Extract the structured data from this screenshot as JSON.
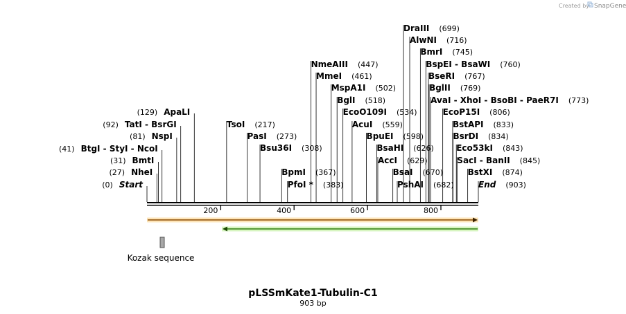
{
  "header": {
    "created_by": "Created by",
    "brand": "SnapGene"
  },
  "plasmid": {
    "name": "pLSSmKate1-Tubulin-C1",
    "length_label": "903 bp",
    "length": 903
  },
  "ruler_ticks": [
    "200",
    "400",
    "600",
    "800"
  ],
  "features": [
    {
      "name": "Kozak sequence",
      "type": "misc",
      "start": 41,
      "end": 51,
      "color": "#aaaaaa"
    },
    {
      "name": "top-arrow",
      "start": 1,
      "end": 903,
      "direction": "forward",
      "color": "#f5a623"
    },
    {
      "name": "bottom-arrow",
      "start": 208,
      "end": 903,
      "direction": "reverse",
      "color": "#7ed321"
    }
  ],
  "left_sites": [
    {
      "pos": 0,
      "pos_label": "(0)",
      "label": "Start",
      "italic": true
    },
    {
      "pos": 27,
      "pos_label": "(27)",
      "label": "NheI"
    },
    {
      "pos": 31,
      "pos_label": "(31)",
      "label": "BmtI"
    },
    {
      "pos": 41,
      "pos_label": "(41)",
      "label": "BtgI  -  StyI  -  NcoI"
    },
    {
      "pos": 81,
      "pos_label": "(81)",
      "label": "NspI"
    },
    {
      "pos": 92,
      "pos_label": "(92)",
      "label": "TatI  -  BsrGI"
    },
    {
      "pos": 129,
      "pos_label": "(129)",
      "label": "ApaLI"
    }
  ],
  "right_sites": [
    {
      "pos": 217,
      "pos_label": "(217)",
      "label": "TsoI"
    },
    {
      "pos": 273,
      "pos_label": "(273)",
      "label": "PasI"
    },
    {
      "pos": 308,
      "pos_label": "(308)",
      "label": "Bsu36I"
    },
    {
      "pos": 367,
      "pos_label": "(367)",
      "label": "BpmI"
    },
    {
      "pos": 383,
      "pos_label": "(383)",
      "label": "PfoI *"
    },
    {
      "pos": 447,
      "pos_label": "(447)",
      "label": "NmeAIII"
    },
    {
      "pos": 461,
      "pos_label": "(461)",
      "label": "MmeI"
    },
    {
      "pos": 502,
      "pos_label": "(502)",
      "label": "MspA1I"
    },
    {
      "pos": 518,
      "pos_label": "(518)",
      "label": "BglI"
    },
    {
      "pos": 534,
      "pos_label": "(534)",
      "label": "EcoO109I"
    },
    {
      "pos": 559,
      "pos_label": "(559)",
      "label": "AcuI"
    },
    {
      "pos": 598,
      "pos_label": "(598)",
      "label": "BpuEI"
    },
    {
      "pos": 626,
      "pos_label": "(626)",
      "label": "BsaHI"
    },
    {
      "pos": 629,
      "pos_label": "(629)",
      "label": "AccI"
    },
    {
      "pos": 670,
      "pos_label": "(670)",
      "label": "BsaI"
    },
    {
      "pos": 682,
      "pos_label": "(682)",
      "label": "PshAI"
    },
    {
      "pos": 699,
      "pos_label": "(699)",
      "label": "DraIII"
    },
    {
      "pos": 716,
      "pos_label": "(716)",
      "label": "AlwNI"
    },
    {
      "pos": 745,
      "pos_label": "(745)",
      "label": "BmrI"
    },
    {
      "pos": 760,
      "pos_label": "(760)",
      "label": "BspEI  -  BsaWI"
    },
    {
      "pos": 767,
      "pos_label": "(767)",
      "label": "BseRI"
    },
    {
      "pos": 769,
      "pos_label": "(769)",
      "label": "BglII"
    },
    {
      "pos": 773,
      "pos_label": "(773)",
      "label": "AvaI  -  XhoI  -  BsoBI  -  PaeR7I"
    },
    {
      "pos": 806,
      "pos_label": "(806)",
      "label": "EcoP15I"
    },
    {
      "pos": 833,
      "pos_label": "(833)",
      "label": "BstAPI"
    },
    {
      "pos": 834,
      "pos_label": "(834)",
      "label": "BsrDI"
    },
    {
      "pos": 843,
      "pos_label": "(843)",
      "label": "Eco53kI"
    },
    {
      "pos": 845,
      "pos_label": "(845)",
      "label": "SacI  -  BanII"
    },
    {
      "pos": 874,
      "pos_label": "(874)",
      "label": "BstXI"
    },
    {
      "pos": 903,
      "pos_label": "(903)",
      "label": "End",
      "italic": true
    }
  ]
}
